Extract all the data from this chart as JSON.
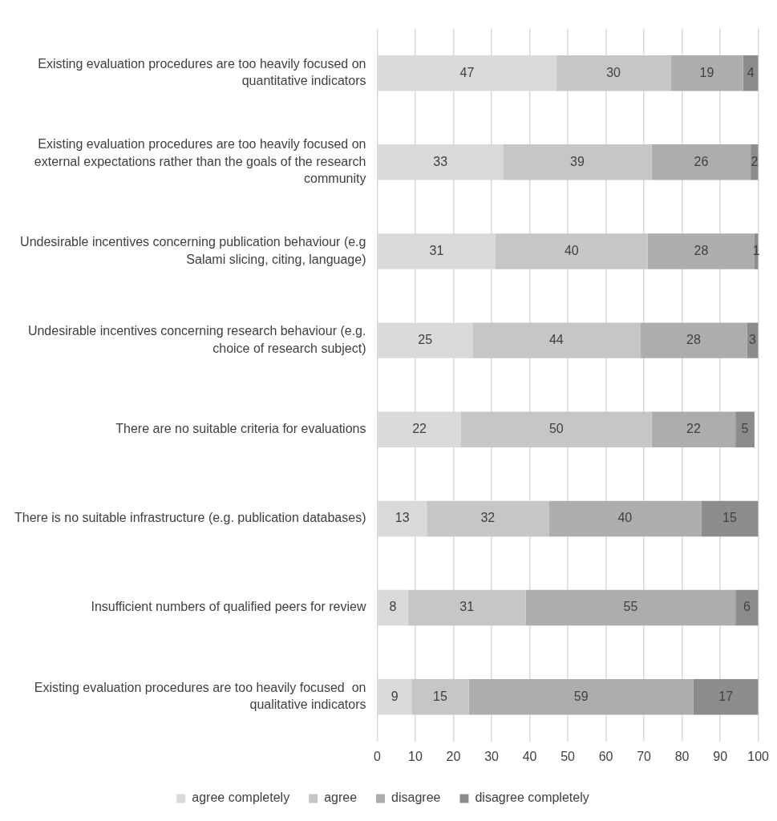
{
  "chart_data": {
    "type": "bar",
    "orientation": "horizontal",
    "stacked": true,
    "categories": [
      "Existing evaluation procedures are too heavily focused on quantitative indicators",
      "Existing evaluation procedures are too heavily focused on external expectations rather than the goals of the research community",
      "Undesirable incentives concerning publication behaviour (e.g Salami slicing, citing, language)",
      "Undesirable incentives concerning research behaviour (e.g. choice of research subject)",
      "There are no suitable criteria for evaluations",
      "There is no suitable infrastructure (e.g. publication databases)",
      "Insufficient numbers of qualified peers for review",
      "Existing evaluation procedures are too heavily focused  on qualitative indicators"
    ],
    "series": [
      {
        "name": "agree completely",
        "color": "#d9d9d9",
        "values": [
          47,
          33,
          31,
          25,
          22,
          13,
          8,
          9
        ]
      },
      {
        "name": "agree",
        "color": "#c6c6c6",
        "values": [
          30,
          39,
          40,
          44,
          50,
          32,
          31,
          15
        ]
      },
      {
        "name": "disagree",
        "color": "#adadad",
        "values": [
          19,
          26,
          28,
          28,
          22,
          40,
          55,
          59
        ]
      },
      {
        "name": "disagree completely",
        "color": "#8c8c8c",
        "values": [
          4,
          2,
          1,
          3,
          5,
          15,
          6,
          17
        ]
      }
    ],
    "xlim": [
      0,
      100
    ],
    "xticks": [
      0,
      10,
      20,
      30,
      40,
      50,
      60,
      70,
      80,
      90,
      100
    ],
    "grid": "x",
    "legend": "bottom",
    "data_labels": true
  }
}
